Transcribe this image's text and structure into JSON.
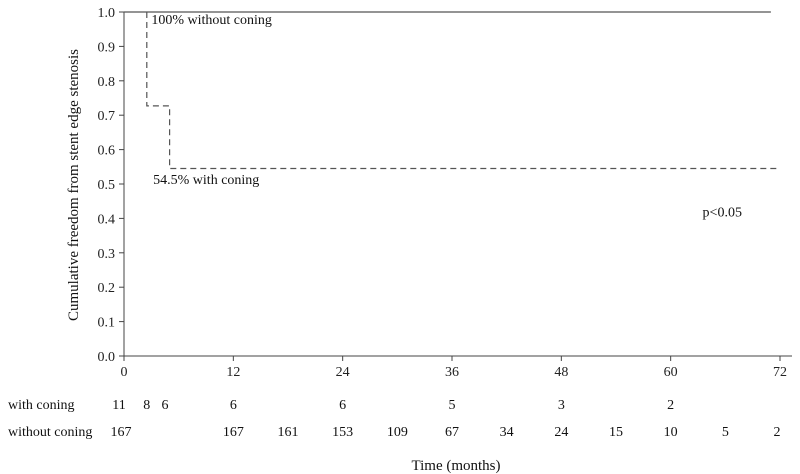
{
  "chart_data": {
    "type": "line",
    "title": "",
    "xlabel": "Time (months)",
    "ylabel": "Cumulative freedom from stent edge stenosis",
    "xlim": [
      0,
      72
    ],
    "ylim": [
      0,
      1.0
    ],
    "x_ticks": [
      0,
      12,
      24,
      36,
      48,
      60,
      72
    ],
    "y_ticks": [
      0.0,
      0.1,
      0.2,
      0.3,
      0.4,
      0.5,
      0.6,
      0.7,
      0.8,
      0.9,
      1.0
    ],
    "series": [
      {
        "id": "without",
        "style": "solid",
        "color": "#555555",
        "points": [
          [
            0,
            1.0
          ],
          [
            71,
            1.0
          ]
        ]
      },
      {
        "id": "with",
        "style": "dashed",
        "color": "#555555",
        "points": [
          [
            2.5,
            1.0
          ],
          [
            2.5,
            0.727
          ],
          [
            5,
            0.727
          ],
          [
            5,
            0.545
          ],
          [
            72,
            0.545
          ]
        ]
      }
    ],
    "annotations": [
      {
        "text": "100% without coning",
        "x": 3,
        "y": 0.965
      },
      {
        "text": "54.5% with coning",
        "x": 3.2,
        "y": 0.5
      },
      {
        "text": "p<0.05",
        "x": 63.5,
        "y": 0.405
      }
    ],
    "numbers_at_risk": [
      {
        "label": "with coning",
        "entries": [
          [
            0,
            "11"
          ],
          [
            2.5,
            "8"
          ],
          [
            4.5,
            "6"
          ],
          [
            12,
            "6"
          ],
          [
            24,
            "6"
          ],
          [
            36,
            "5"
          ],
          [
            48,
            "3"
          ],
          [
            60,
            "2"
          ]
        ]
      },
      {
        "label": "without coning",
        "entries": [
          [
            0,
            "167"
          ],
          [
            12,
            "167"
          ],
          [
            18,
            "161"
          ],
          [
            24,
            "153"
          ],
          [
            30,
            "109"
          ],
          [
            36,
            "67"
          ],
          [
            42,
            "34"
          ],
          [
            48,
            "24"
          ],
          [
            54,
            "15"
          ],
          [
            60,
            "10"
          ],
          [
            66,
            "5"
          ],
          [
            72,
            "2"
          ]
        ]
      }
    ]
  }
}
